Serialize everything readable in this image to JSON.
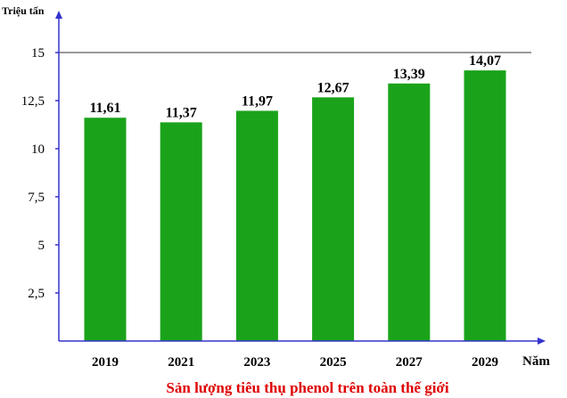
{
  "chart_data": {
    "type": "bar",
    "title": "Sản lượng tiêu thụ phenol trên toàn thế giới",
    "xlabel": "Năm",
    "ylabel": "Triệu tấn",
    "categories": [
      "2019",
      "2021",
      "2023",
      "2025",
      "2027",
      "2029"
    ],
    "values": [
      11.61,
      11.37,
      11.97,
      12.67,
      13.39,
      14.07
    ],
    "value_labels": [
      "11,61",
      "11,37",
      "11,97",
      "12,67",
      "13,39",
      "14,07"
    ],
    "ylim": [
      0,
      16
    ],
    "yticks": [
      2.5,
      5,
      7.5,
      10,
      12.5,
      15
    ],
    "ytick_labels": [
      "2,5",
      "5",
      "7,5",
      "10",
      "12,5",
      "15"
    ],
    "grid": "single line at 15",
    "colors": {
      "bar": "#1aa31a",
      "axis": "#3333cc",
      "title": "#e00000"
    }
  }
}
